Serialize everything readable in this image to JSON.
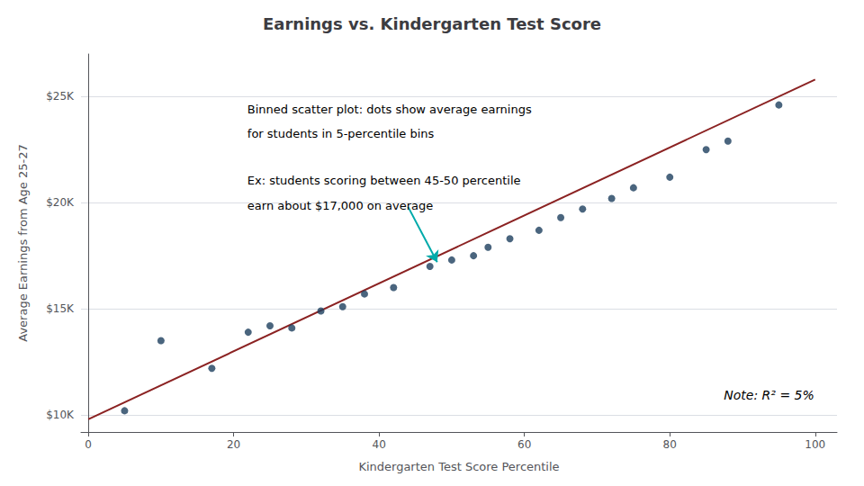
{
  "chart_data": {
    "type": "scatter",
    "title": "Earnings vs. Kindergarten Test Score",
    "x_label": "Kindergarten Test Score Percentile",
    "y_label": "Average Earnings from Age 25-27",
    "series": [
      {
        "type": "scatter",
        "color": "#1d3f5e",
        "x": [
          5,
          10,
          17,
          22,
          25,
          28,
          32,
          35,
          38,
          42,
          47,
          50,
          53,
          55,
          58,
          62,
          65,
          68,
          72,
          75,
          80,
          85,
          88,
          95
        ],
        "values": [
          10200,
          13500,
          12200,
          13900,
          14200,
          14100,
          14900,
          15100,
          15700,
          16000,
          17000,
          17300,
          17500,
          17900,
          18300,
          18700,
          19300,
          19700,
          20200,
          20700,
          21200,
          22500,
          22900,
          24600
        ]
      },
      {
        "type": "line",
        "color": "#8b2222",
        "x": [
          0,
          100
        ],
        "values": [
          9800,
          25800
        ]
      }
    ],
    "xlim": [
      -1,
      103
    ],
    "xticks": [
      0,
      20,
      40,
      60,
      80,
      100
    ],
    "ylim": [
      9200,
      27000
    ],
    "yticks": [
      {
        "value": 10000,
        "label": "$10K"
      },
      {
        "value": 15000,
        "label": "$15K"
      },
      {
        "value": 20000,
        "label": "$20K"
      },
      {
        "value": 25000,
        "label": "$25K"
      }
    ],
    "grid": "y",
    "legend": false,
    "annotations": [
      {
        "text": "Binned scatter plot: dots show average earnings"
      },
      {
        "text": "for students in 5-percentile bins"
      },
      {
        "text": "Ex: students scoring between 45-50 percentile"
      },
      {
        "text": "earn about $17,000 on average"
      },
      {
        "text": "Note: R² = 5%"
      }
    ],
    "arrow": {
      "x": [
        44,
        48
      ],
      "y": [
        19800,
        17200
      ],
      "color": "#00aaaa"
    }
  }
}
